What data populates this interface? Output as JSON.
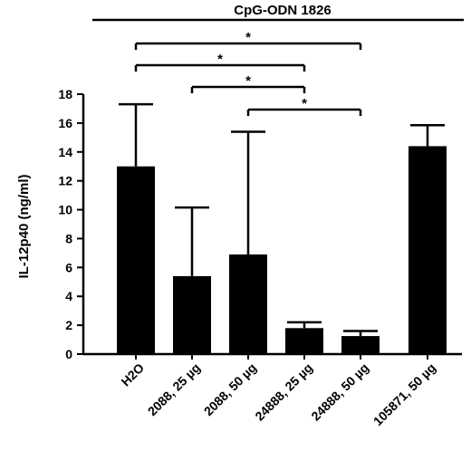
{
  "chart_data": {
    "type": "bar",
    "title": "CpG-ODN 1826",
    "ylabel": "IL-12p40 (ng/ml)",
    "xlabel": "",
    "ylim": [
      0,
      18
    ],
    "yticks": [
      0,
      2,
      4,
      6,
      8,
      10,
      12,
      14,
      16,
      18
    ],
    "categories": [
      "H2O",
      "2088, 25 µg",
      "2088, 50 µg",
      "24888, 25 µg",
      "24888, 50 µg",
      "105871, 50 µg"
    ],
    "values": [
      13.0,
      5.4,
      6.9,
      1.8,
      1.25,
      14.4
    ],
    "errors": [
      4.3,
      4.75,
      8.5,
      0.4,
      0.35,
      1.45
    ],
    "significance": [
      {
        "from": 0,
        "to": 4,
        "label": "*"
      },
      {
        "from": 0,
        "to": 3,
        "label": "*"
      },
      {
        "from": 1,
        "to": 3,
        "label": "*"
      },
      {
        "from": 2,
        "to": 4,
        "label": "*"
      }
    ],
    "bar_color": "#000000",
    "grid": false,
    "legend": "none"
  }
}
